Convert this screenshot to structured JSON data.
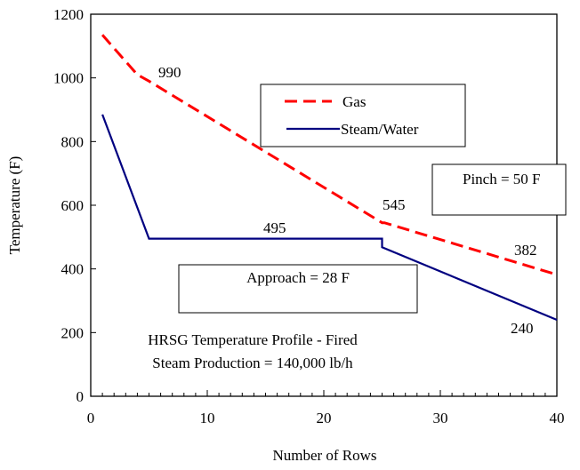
{
  "chart_data": {
    "type": "line",
    "title": "",
    "xlabel": "Number of Rows",
    "ylabel": "Temperature (F)",
    "xlim": [
      0,
      40
    ],
    "ylim": [
      0,
      1200
    ],
    "xticks": [
      0,
      10,
      20,
      30,
      40
    ],
    "yticks": [
      0,
      200,
      400,
      600,
      800,
      1000,
      1200
    ],
    "grid": false,
    "legend_position": "top-center",
    "series": [
      {
        "name": "Gas",
        "color": "#ff0000",
        "style": "dashed",
        "x": [
          1,
          4,
          5,
          25,
          25.2,
          40
        ],
        "y": [
          1135,
          1010,
          990,
          545,
          545,
          382
        ]
      },
      {
        "name": "Steam/Water",
        "color": "#000080",
        "style": "solid",
        "x": [
          1,
          5,
          25,
          25,
          40
        ],
        "y": [
          885,
          495,
          495,
          468,
          240
        ]
      }
    ],
    "data_labels": [
      {
        "text": "990",
        "x": 5,
        "y": 990
      },
      {
        "text": "545",
        "x": 25,
        "y": 545
      },
      {
        "text": "382",
        "x": 40,
        "y": 382
      },
      {
        "text": "495",
        "x": 16,
        "y": 495
      },
      {
        "text": "240",
        "x": 40,
        "y": 240
      }
    ],
    "annotations": {
      "pinch": "Pinch = 50 F",
      "approach": "Approach = 28 F",
      "caption_line1": "HRSG Temperature Profile - Fired",
      "caption_line2": "Steam Production = 140,000 lb/h"
    }
  }
}
